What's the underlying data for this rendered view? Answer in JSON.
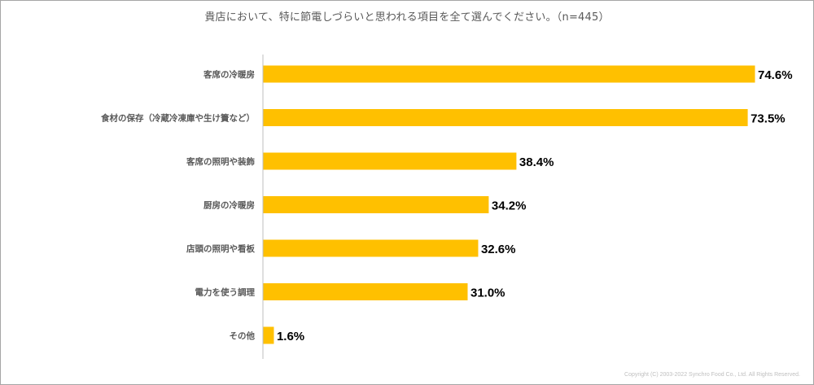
{
  "chart_data": {
    "type": "bar",
    "orientation": "horizontal",
    "title": "貴店において、特に節電しづらいと思われる項目を全て選んでください。（n=445）",
    "categories": [
      "客席の冷暖房",
      "食材の保存（冷蔵冷凍庫や生け簀など）",
      "客席の照明や装飾",
      "厨房の冷暖房",
      "店頭の照明や看板",
      "電力を使う調理",
      "その他"
    ],
    "values": [
      74.6,
      73.5,
      38.4,
      34.2,
      32.6,
      31.0,
      1.6
    ],
    "value_labels": [
      "74.6%",
      "73.5%",
      "38.4%",
      "34.2%",
      "32.6%",
      "31.0%",
      "1.6%"
    ],
    "xlim": [
      0,
      74.6
    ],
    "bar_color": "#FFC000",
    "axis_color": "#BFBFBF",
    "grid": false,
    "legend": "none"
  },
  "copyright": "Copyright (C) 2003-2022 Synchro Food Co., Ltd. All Rights Reserved."
}
